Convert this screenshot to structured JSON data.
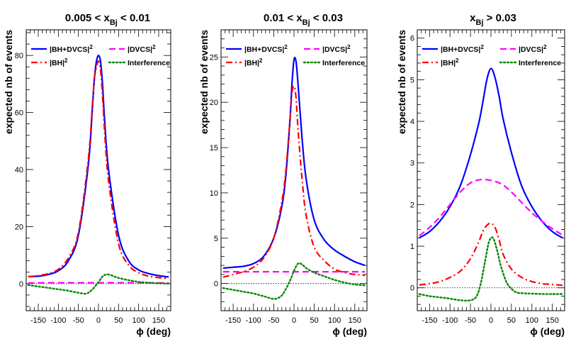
{
  "chart_data": [
    {
      "type": "line",
      "title": "0.005 < x_Bj < 0.01",
      "title_parts": {
        "pre": "0.005 < x",
        "sub": "Bj",
        "post": " < 0.01"
      },
      "xlabel": "ϕ (deg)",
      "ylabel": "expected nb of events",
      "xlim": [
        -180,
        180
      ],
      "ylim": [
        -9.5,
        89
      ],
      "xticks": [
        -150,
        -100,
        -50,
        0,
        50,
        100,
        150
      ],
      "yticks": [
        0,
        20,
        40,
        60,
        80
      ],
      "zero_line": true,
      "series": [
        {
          "name": "|BH+DVCS|²",
          "key": "total",
          "color": "#0000ff",
          "dash": "solid",
          "width": 2.2,
          "x": [
            -175,
            -150,
            -125,
            -100,
            -75,
            -50,
            -25,
            -15,
            -10,
            -5,
            0,
            5,
            10,
            15,
            25,
            50,
            75,
            100,
            125,
            150,
            175
          ],
          "y": [
            2.5,
            2.6,
            3.2,
            4.5,
            8,
            17,
            42,
            62,
            72,
            78,
            80,
            78,
            70,
            58,
            40,
            17,
            8,
            4.8,
            3.5,
            2.8,
            2.3
          ]
        },
        {
          "name": "|DVCS|²",
          "key": "dvcs",
          "color": "#ff00ff",
          "dash": "9,5",
          "width": 2.2,
          "x": [
            -175,
            -100,
            0,
            100,
            175
          ],
          "y": [
            0.2,
            0.3,
            0.3,
            0.3,
            0.2
          ]
        },
        {
          "name": "|BH|²",
          "key": "bh",
          "color": "#ff0000",
          "dash": "9,4,2,4",
          "width": 2.2,
          "x": [
            -175,
            -150,
            -125,
            -100,
            -75,
            -50,
            -25,
            -15,
            -10,
            -5,
            0,
            5,
            10,
            15,
            25,
            50,
            75,
            100,
            125,
            150,
            175
          ],
          "y": [
            2.4,
            2.8,
            3.5,
            5,
            9,
            18,
            44,
            63,
            72,
            76,
            78,
            75,
            66,
            54,
            36,
            14,
            6.5,
            3.8,
            2.6,
            2.1,
            1.8
          ]
        },
        {
          "name": "Interference",
          "key": "int",
          "color": "#008800",
          "dash": "2,3",
          "width": 2.4,
          "x": [
            -175,
            -150,
            -125,
            -100,
            -75,
            -50,
            -30,
            -15,
            0,
            10,
            20,
            30,
            50,
            75,
            100,
            125,
            150,
            175
          ],
          "y": [
            -0.5,
            -1,
            -1.5,
            -2,
            -2.5,
            -3.2,
            -3.5,
            -2,
            0.5,
            2.5,
            3.2,
            3,
            2,
            1.2,
            0.6,
            0.3,
            0.1,
            0
          ]
        }
      ],
      "legend": [
        {
          "label": "|BH+DVCS|",
          "sup": "2",
          "series": "total"
        },
        {
          "label": "|DVCS|",
          "sup": "2",
          "series": "dvcs"
        },
        {
          "label": "|BH|",
          "sup": "2",
          "series": "bh"
        },
        {
          "label": "Interference",
          "sup": "",
          "series": "int"
        }
      ]
    },
    {
      "type": "line",
      "title": "0.01 < x_Bj < 0.03",
      "title_parts": {
        "pre": "0.01 < x",
        "sub": "Bj",
        "post": " < 0.03"
      },
      "xlabel": "ϕ (deg)",
      "ylabel": "expected nb of events",
      "xlim": [
        -180,
        180
      ],
      "ylim": [
        -3.0,
        28
      ],
      "xticks": [
        -150,
        -100,
        -50,
        0,
        50,
        100,
        150
      ],
      "yticks": [
        0,
        5,
        10,
        15,
        20,
        25
      ],
      "zero_line": true,
      "series": [
        {
          "name": "|BH+DVCS|²",
          "key": "total",
          "color": "#0000ff",
          "dash": "solid",
          "width": 2.2,
          "x": [
            -175,
            -150,
            -125,
            -100,
            -75,
            -50,
            -30,
            -20,
            -10,
            -5,
            0,
            5,
            10,
            20,
            30,
            50,
            75,
            100,
            125,
            150,
            175
          ],
          "y": [
            1.7,
            1.8,
            1.9,
            2.2,
            3,
            5,
            8.5,
            12,
            18,
            22,
            24.7,
            24.5,
            22,
            16,
            11.5,
            7,
            4.8,
            3.7,
            3,
            2.4,
            2
          ]
        },
        {
          "name": "|DVCS|²",
          "key": "dvcs",
          "color": "#ff00ff",
          "dash": "9,5",
          "width": 2.2,
          "x": [
            -175,
            -100,
            0,
            100,
            175
          ],
          "y": [
            1.3,
            1.3,
            1.3,
            1.3,
            1.3
          ]
        },
        {
          "name": "|BH|²",
          "key": "bh",
          "color": "#ff0000",
          "dash": "9,4,2,4",
          "width": 2.2,
          "x": [
            -175,
            -150,
            -125,
            -100,
            -75,
            -50,
            -30,
            -20,
            -10,
            -5,
            0,
            5,
            10,
            20,
            30,
            50,
            75,
            100,
            125,
            150,
            175
          ],
          "y": [
            0.7,
            1,
            1.3,
            1.8,
            2.8,
            5,
            9,
            12.5,
            18,
            21,
            21.8,
            20.5,
            17,
            11.5,
            7.5,
            4,
            2.5,
            1.6,
            1.2,
            1,
            0.9
          ]
        },
        {
          "name": "Interference",
          "key": "int",
          "color": "#008800",
          "dash": "2,3",
          "width": 2.4,
          "x": [
            -175,
            -150,
            -125,
            -100,
            -75,
            -50,
            -35,
            -25,
            -10,
            0,
            10,
            20,
            30,
            50,
            75,
            100,
            125,
            150,
            175
          ],
          "y": [
            -0.5,
            -0.7,
            -0.9,
            -1.1,
            -1.4,
            -1.7,
            -1.5,
            -1,
            0.3,
            1.4,
            2.2,
            2.1,
            1.7,
            1.2,
            0.8,
            0.4,
            0.1,
            -0.1,
            -0.2
          ]
        }
      ],
      "legend": [
        {
          "label": "|BH+DVCS|",
          "sup": "2",
          "series": "total"
        },
        {
          "label": "|DVCS|",
          "sup": "2",
          "series": "dvcs"
        },
        {
          "label": "|BH|",
          "sup": "2",
          "series": "bh"
        },
        {
          "label": "Interference",
          "sup": "",
          "series": "int"
        }
      ]
    },
    {
      "type": "line",
      "title": "x_Bj > 0.03",
      "title_parts": {
        "pre": "x",
        "sub": "Bj",
        "post": " > 0.03"
      },
      "xlabel": "ϕ (deg)",
      "ylabel": "expected nb of events",
      "xlim": [
        -180,
        180
      ],
      "ylim": [
        -0.55,
        6.2
      ],
      "xticks": [
        -150,
        -100,
        -50,
        0,
        50,
        100,
        150
      ],
      "yticks": [
        0,
        1,
        2,
        3,
        4,
        5,
        6
      ],
      "zero_line": true,
      "series": [
        {
          "name": "|BH+DVCS|²",
          "key": "total",
          "color": "#0000ff",
          "dash": "solid",
          "width": 2.2,
          "x": [
            -175,
            -150,
            -125,
            -100,
            -75,
            -50,
            -30,
            -20,
            -10,
            0,
            10,
            20,
            30,
            50,
            75,
            100,
            125,
            150,
            175
          ],
          "y": [
            1.2,
            1.35,
            1.6,
            1.95,
            2.45,
            3.2,
            3.95,
            4.45,
            5,
            5.27,
            5.05,
            4.6,
            4.05,
            3.25,
            2.45,
            1.95,
            1.6,
            1.35,
            1.2
          ]
        },
        {
          "name": "|DVCS|²",
          "key": "dvcs",
          "color": "#ff00ff",
          "dash": "9,5",
          "width": 2.2,
          "x": [
            -175,
            -150,
            -125,
            -100,
            -75,
            -50,
            -25,
            0,
            25,
            50,
            75,
            100,
            125,
            150,
            175
          ],
          "y": [
            1.25,
            1.45,
            1.7,
            2,
            2.3,
            2.52,
            2.6,
            2.58,
            2.5,
            2.3,
            2.05,
            1.8,
            1.6,
            1.42,
            1.27
          ]
        },
        {
          "name": "|BH|²",
          "key": "bh",
          "color": "#ff0000",
          "dash": "9,4,2,4",
          "width": 2.2,
          "x": [
            -175,
            -150,
            -125,
            -100,
            -75,
            -50,
            -30,
            -20,
            -10,
            0,
            10,
            20,
            30,
            50,
            75,
            100,
            125,
            150,
            175
          ],
          "y": [
            0.07,
            0.1,
            0.15,
            0.25,
            0.4,
            0.7,
            1.1,
            1.35,
            1.5,
            1.55,
            1.45,
            1.15,
            0.8,
            0.45,
            0.25,
            0.15,
            0.1,
            0.08,
            0.06
          ]
        },
        {
          "name": "Interference",
          "key": "int",
          "color": "#008800",
          "dash": "2,3",
          "width": 2.4,
          "x": [
            -175,
            -150,
            -125,
            -100,
            -75,
            -50,
            -35,
            -25,
            -15,
            -5,
            5,
            15,
            25,
            40,
            60,
            80,
            100,
            125,
            150,
            175
          ],
          "y": [
            -0.15,
            -0.2,
            -0.23,
            -0.26,
            -0.3,
            -0.3,
            -0.2,
            0.1,
            0.6,
            1.1,
            1.2,
            0.9,
            0.5,
            0.1,
            -0.1,
            -0.13,
            -0.14,
            -0.15,
            -0.15,
            -0.15
          ]
        }
      ],
      "legend": [
        {
          "label": "|BH+DVCS|",
          "sup": "2",
          "series": "total"
        },
        {
          "label": "|DVCS|",
          "sup": "2",
          "series": "dvcs"
        },
        {
          "label": "|BH|",
          "sup": "2",
          "series": "bh"
        },
        {
          "label": "Interference",
          "sup": "",
          "series": "int"
        }
      ]
    }
  ]
}
